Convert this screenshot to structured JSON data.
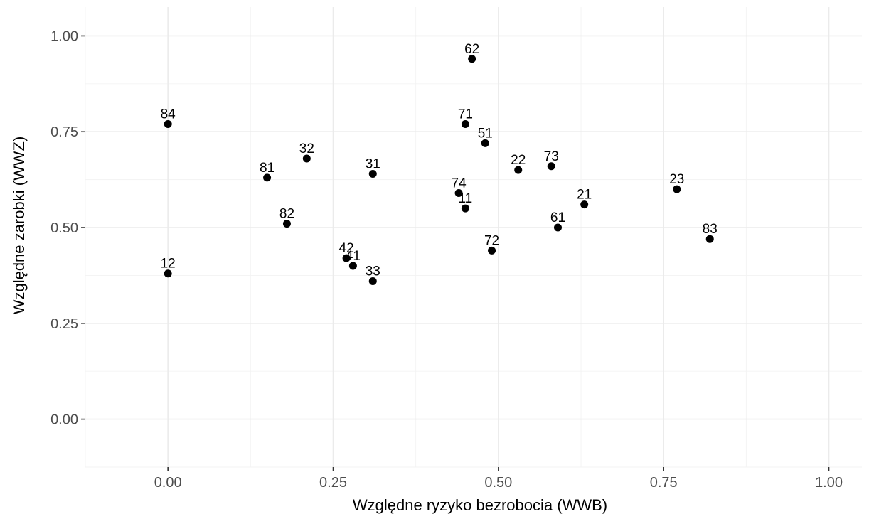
{
  "chart_data": {
    "type": "scatter",
    "title": "",
    "xlabel": "Względne ryzyko bezrobocia (WWB)",
    "ylabel": "Względne zarobki (WWZ)",
    "xlim": [
      -0.125,
      1.05
    ],
    "ylim": [
      -0.125,
      1.075
    ],
    "x_ticks": [
      0.0,
      0.25,
      0.5,
      0.75,
      1.0
    ],
    "x_tick_labels": [
      "0.00",
      "0.25",
      "0.50",
      "0.75",
      "1.00"
    ],
    "y_ticks": [
      0.0,
      0.25,
      0.5,
      0.75,
      1.0
    ],
    "y_tick_labels": [
      "0.00",
      "0.25",
      "0.50",
      "0.75",
      "1.00"
    ],
    "grid": true,
    "marker_color": "#000000",
    "points": [
      {
        "label": "62",
        "x": 0.46,
        "y": 0.94
      },
      {
        "label": "84",
        "x": 0.0,
        "y": 0.77
      },
      {
        "label": "71",
        "x": 0.45,
        "y": 0.77
      },
      {
        "label": "51",
        "x": 0.48,
        "y": 0.72
      },
      {
        "label": "32",
        "x": 0.21,
        "y": 0.68
      },
      {
        "label": "73",
        "x": 0.58,
        "y": 0.66
      },
      {
        "label": "22",
        "x": 0.53,
        "y": 0.65
      },
      {
        "label": "31",
        "x": 0.31,
        "y": 0.64
      },
      {
        "label": "81",
        "x": 0.15,
        "y": 0.63
      },
      {
        "label": "23",
        "x": 0.77,
        "y": 0.6
      },
      {
        "label": "74",
        "x": 0.44,
        "y": 0.59
      },
      {
        "label": "21",
        "x": 0.63,
        "y": 0.56
      },
      {
        "label": "11",
        "x": 0.45,
        "y": 0.55
      },
      {
        "label": "82",
        "x": 0.18,
        "y": 0.51
      },
      {
        "label": "61",
        "x": 0.59,
        "y": 0.5
      },
      {
        "label": "83",
        "x": 0.82,
        "y": 0.47
      },
      {
        "label": "72",
        "x": 0.49,
        "y": 0.44
      },
      {
        "label": "42",
        "x": 0.27,
        "y": 0.42
      },
      {
        "label": "41",
        "x": 0.28,
        "y": 0.4
      },
      {
        "label": "12",
        "x": 0.0,
        "y": 0.38
      },
      {
        "label": "33",
        "x": 0.31,
        "y": 0.36
      }
    ]
  }
}
